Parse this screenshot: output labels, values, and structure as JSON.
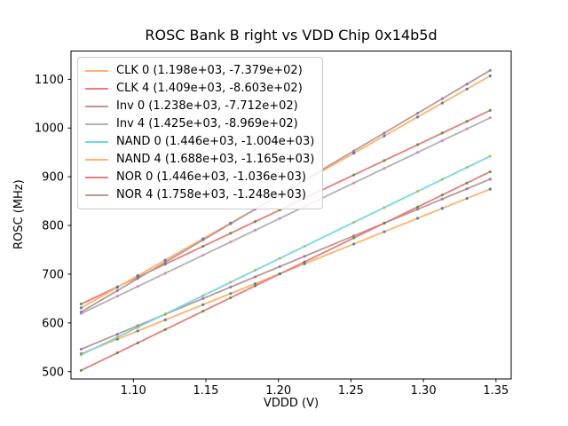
{
  "figure": {
    "title": "ROSC Bank B right vs VDD Chip 0x14b5d",
    "xlabel": "VDDD (V)",
    "ylabel": "ROSC (MHz)",
    "background_color": "#ffffff",
    "frame_color": "#000000"
  },
  "chart_data": {
    "type": "scatter",
    "title": "ROSC Bank B right vs VDD Chip 0x14b5d",
    "xlabel": "VDDD (V)",
    "ylabel": "ROSC (MHz)",
    "legend_position": "upper left",
    "grid": false,
    "xlim": [
      1.057,
      1.3605
    ],
    "ylim": [
      485,
      1158
    ],
    "xticks": [
      1.1,
      1.15,
      1.2,
      1.25,
      1.3,
      1.35
    ],
    "xtick_labels": [
      "1.10",
      "1.15",
      "1.20",
      "1.25",
      "1.30",
      "1.35"
    ],
    "yticks": [
      500,
      600,
      700,
      800,
      900,
      1000,
      1100
    ],
    "ytick_labels": [
      "500",
      "600",
      "700",
      "800",
      "900",
      "1000",
      "1100"
    ],
    "x": [
      1.064,
      1.089,
      1.103,
      1.122,
      1.148,
      1.167,
      1.184,
      1.201,
      1.218,
      1.252,
      1.273,
      1.296,
      1.313,
      1.33,
      1.346
    ],
    "series": [
      {
        "name": "CLK 0",
        "legend_label": "CLK 0 (1.198e+03, -7.379e+02)",
        "slope": 1198,
        "intercept": -737.9,
        "line_color": "#ffb26e",
        "marker_color": "#1f77b4",
        "values": [
          536.8,
          566.7,
          583.5,
          606.3,
          637.4,
          660.2,
          680.5,
          700.9,
          721.3,
          762.0,
          787.2,
          814.7,
          835.1,
          855.4,
          874.6
        ]
      },
      {
        "name": "CLK 4",
        "legend_label": "CLK 4 (1.409e+03, -8.603e+02)",
        "slope": 1409,
        "intercept": -860.3,
        "line_color": "#e67d7e",
        "marker_color": "#2ca02c",
        "values": [
          638.9,
          674.1,
          693.8,
          720.6,
          757.2,
          784.0,
          808.0,
          831.9,
          855.9,
          903.8,
          933.4,
          965.8,
          989.7,
          1013.7,
          1036.2
        ]
      },
      {
        "name": "Inv 0",
        "legend_label": "Inv 0 (1.238e+03, -7.712e+02)",
        "slope": 1238,
        "intercept": -771.2,
        "line_color": "#ba9a93",
        "marker_color": "#9467bd",
        "values": [
          546.0,
          577.0,
          594.3,
          617.8,
          650.0,
          673.5,
          694.6,
          715.6,
          736.7,
          778.8,
          804.8,
          833.2,
          854.3,
          875.3,
          895.1
        ]
      },
      {
        "name": "Inv 4",
        "legend_label": "Inv 4 (1.425e+03, -8.969e+02)",
        "slope": 1425,
        "intercept": -896.9,
        "line_color": "#b2b2b2",
        "marker_color": "#e377c2",
        "values": [
          619.3,
          654.9,
          674.9,
          702.0,
          739.0,
          766.1,
          790.3,
          814.5,
          838.8,
          887.2,
          917.1,
          949.9,
          974.1,
          998.4,
          1021.2
        ]
      },
      {
        "name": "NAND 0",
        "legend_label": "NAND 0 (1.446e+03, -1.004e+03)",
        "slope": 1446,
        "intercept": -1004,
        "line_color": "#74d8e2",
        "marker_color": "#bcbd22",
        "values": [
          534.5,
          570.7,
          590.9,
          618.4,
          656.0,
          683.5,
          708.1,
          732.6,
          757.2,
          806.4,
          836.8,
          870.0,
          894.6,
          919.2,
          942.3
        ]
      },
      {
        "name": "NAND 4",
        "legend_label": "NAND 4 (1.688e+03, -1.165e+03)",
        "slope": 1688,
        "intercept": -1165,
        "line_color": "#ffb26e",
        "marker_color": "#1f77b4",
        "values": [
          631.0,
          673.2,
          696.9,
          728.9,
          772.8,
          804.9,
          833.6,
          862.3,
          891.0,
          948.4,
          983.8,
          1022.6,
          1051.3,
          1080.0,
          1107.0
        ]
      },
      {
        "name": "NOR 0",
        "legend_label": "NOR 0 (1.446e+03, -1.036e+03)",
        "slope": 1446,
        "intercept": -1036,
        "line_color": "#e67d7e",
        "marker_color": "#2ca02c",
        "values": [
          502.5,
          538.7,
          558.9,
          586.4,
          624.0,
          651.5,
          676.1,
          700.6,
          725.2,
          774.4,
          804.8,
          838.0,
          862.6,
          887.2,
          910.3
        ]
      },
      {
        "name": "NOR 4",
        "legend_label": "NOR 4 (1.758e+03, -1.248e+03)",
        "slope": 1758,
        "intercept": -1248,
        "line_color": "#ba9a93",
        "marker_color": "#9467bd",
        "values": [
          622.5,
          666.5,
          691.1,
          724.5,
          770.2,
          803.6,
          833.5,
          863.4,
          893.2,
          953.0,
          989.9,
          1030.4,
          1060.3,
          1090.1,
          1118.3
        ]
      }
    ]
  }
}
